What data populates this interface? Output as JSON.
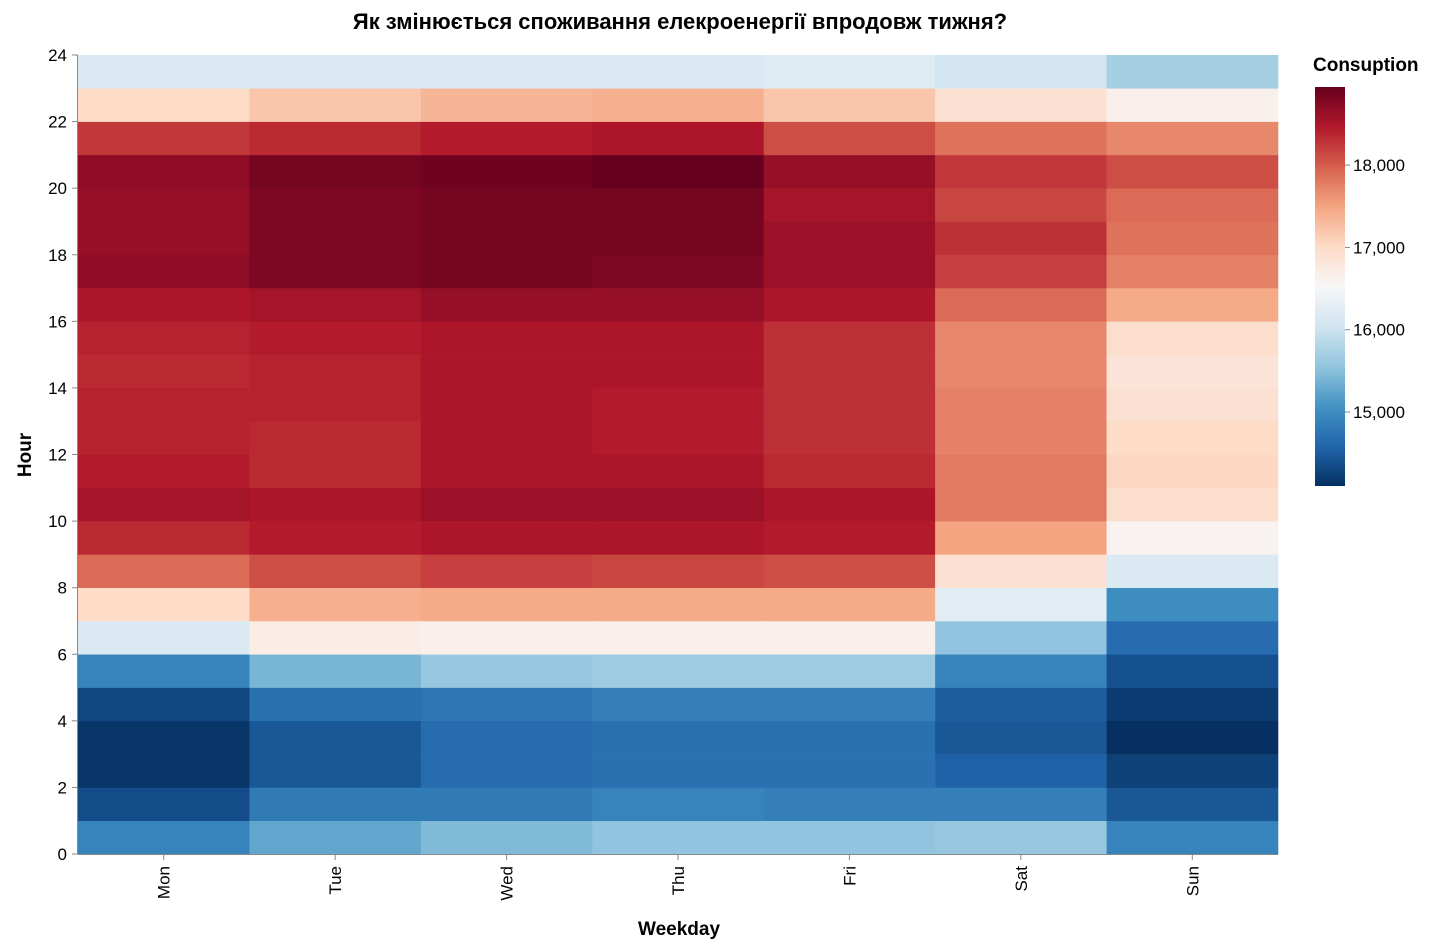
{
  "chart_data": {
    "type": "heatmap",
    "title": "Як змінюється споживання елекроенергії впродовж тижня?",
    "xlabel": "Weekday",
    "ylabel": "Hour",
    "x_categories": [
      "Mon",
      "Tue",
      "Wed",
      "Thu",
      "Fri",
      "Sat",
      "Sun"
    ],
    "y_range": [
      0,
      24
    ],
    "y_ticks": [
      0,
      2,
      4,
      6,
      8,
      10,
      12,
      14,
      16,
      18,
      20,
      22,
      24
    ],
    "legend": {
      "title": "Consuption",
      "placement": "top-right",
      "domain": [
        14100,
        18950
      ],
      "ticks": [
        15000,
        16000,
        17000,
        18000
      ],
      "tick_labels": [
        "15,000",
        "16,000",
        "17,000",
        "18,000"
      ]
    },
    "color_scheme": {
      "name": "redblue",
      "stops": [
        "#053061",
        "#2166ac",
        "#4393c3",
        "#92c5de",
        "#d1e5f0",
        "#f7f7f7",
        "#fddbc7",
        "#f4a582",
        "#d6604d",
        "#b2182b",
        "#67001f"
      ]
    },
    "values": {
      "Mon": [
        14900,
        14350,
        14150,
        14150,
        14300,
        14900,
        16150,
        17000,
        17900,
        18350,
        18550,
        18450,
        18400,
        18400,
        18350,
        18400,
        18500,
        18700,
        18650,
        18650,
        18700,
        18250,
        17000,
        16150
      ],
      "Tue": [
        15250,
        14800,
        14450,
        14450,
        14700,
        15400,
        16700,
        17400,
        18100,
        18450,
        18500,
        18350,
        18350,
        18400,
        18400,
        18450,
        18550,
        18800,
        18800,
        18800,
        18850,
        18350,
        17200,
        16150
      ],
      "Wed": [
        15450,
        14800,
        14650,
        14650,
        14750,
        15600,
        16650,
        17450,
        18200,
        18500,
        18600,
        18500,
        18500,
        18500,
        18500,
        18500,
        18650,
        18850,
        18850,
        18850,
        18900,
        18450,
        17350,
        16150
      ],
      "Thu": [
        15550,
        14900,
        14700,
        14700,
        14850,
        15650,
        16650,
        17450,
        18150,
        18500,
        18600,
        18500,
        18450,
        18450,
        18500,
        18500,
        18650,
        18800,
        18850,
        18850,
        18950,
        18500,
        17400,
        16150
      ],
      "Fri": [
        15550,
        14850,
        14700,
        14700,
        14850,
        15650,
        16650,
        17450,
        18100,
        18450,
        18500,
        18350,
        18300,
        18300,
        18300,
        18300,
        18500,
        18600,
        18600,
        18550,
        18650,
        18100,
        17200,
        16200
      ],
      "Sat": [
        15600,
        14850,
        14550,
        14450,
        14500,
        14900,
        15550,
        16250,
        16900,
        17500,
        17800,
        17800,
        17750,
        17750,
        17700,
        17700,
        17900,
        18200,
        18300,
        18150,
        18250,
        17850,
        16900,
        16050
      ],
      "Sun": [
        14900,
        14450,
        14250,
        14100,
        14200,
        14400,
        14650,
        15000,
        16150,
        16600,
        16950,
        17050,
        17000,
        16900,
        16850,
        16950,
        17450,
        17750,
        17850,
        17900,
        18100,
        17700,
        16650,
        15700
      ]
    }
  }
}
